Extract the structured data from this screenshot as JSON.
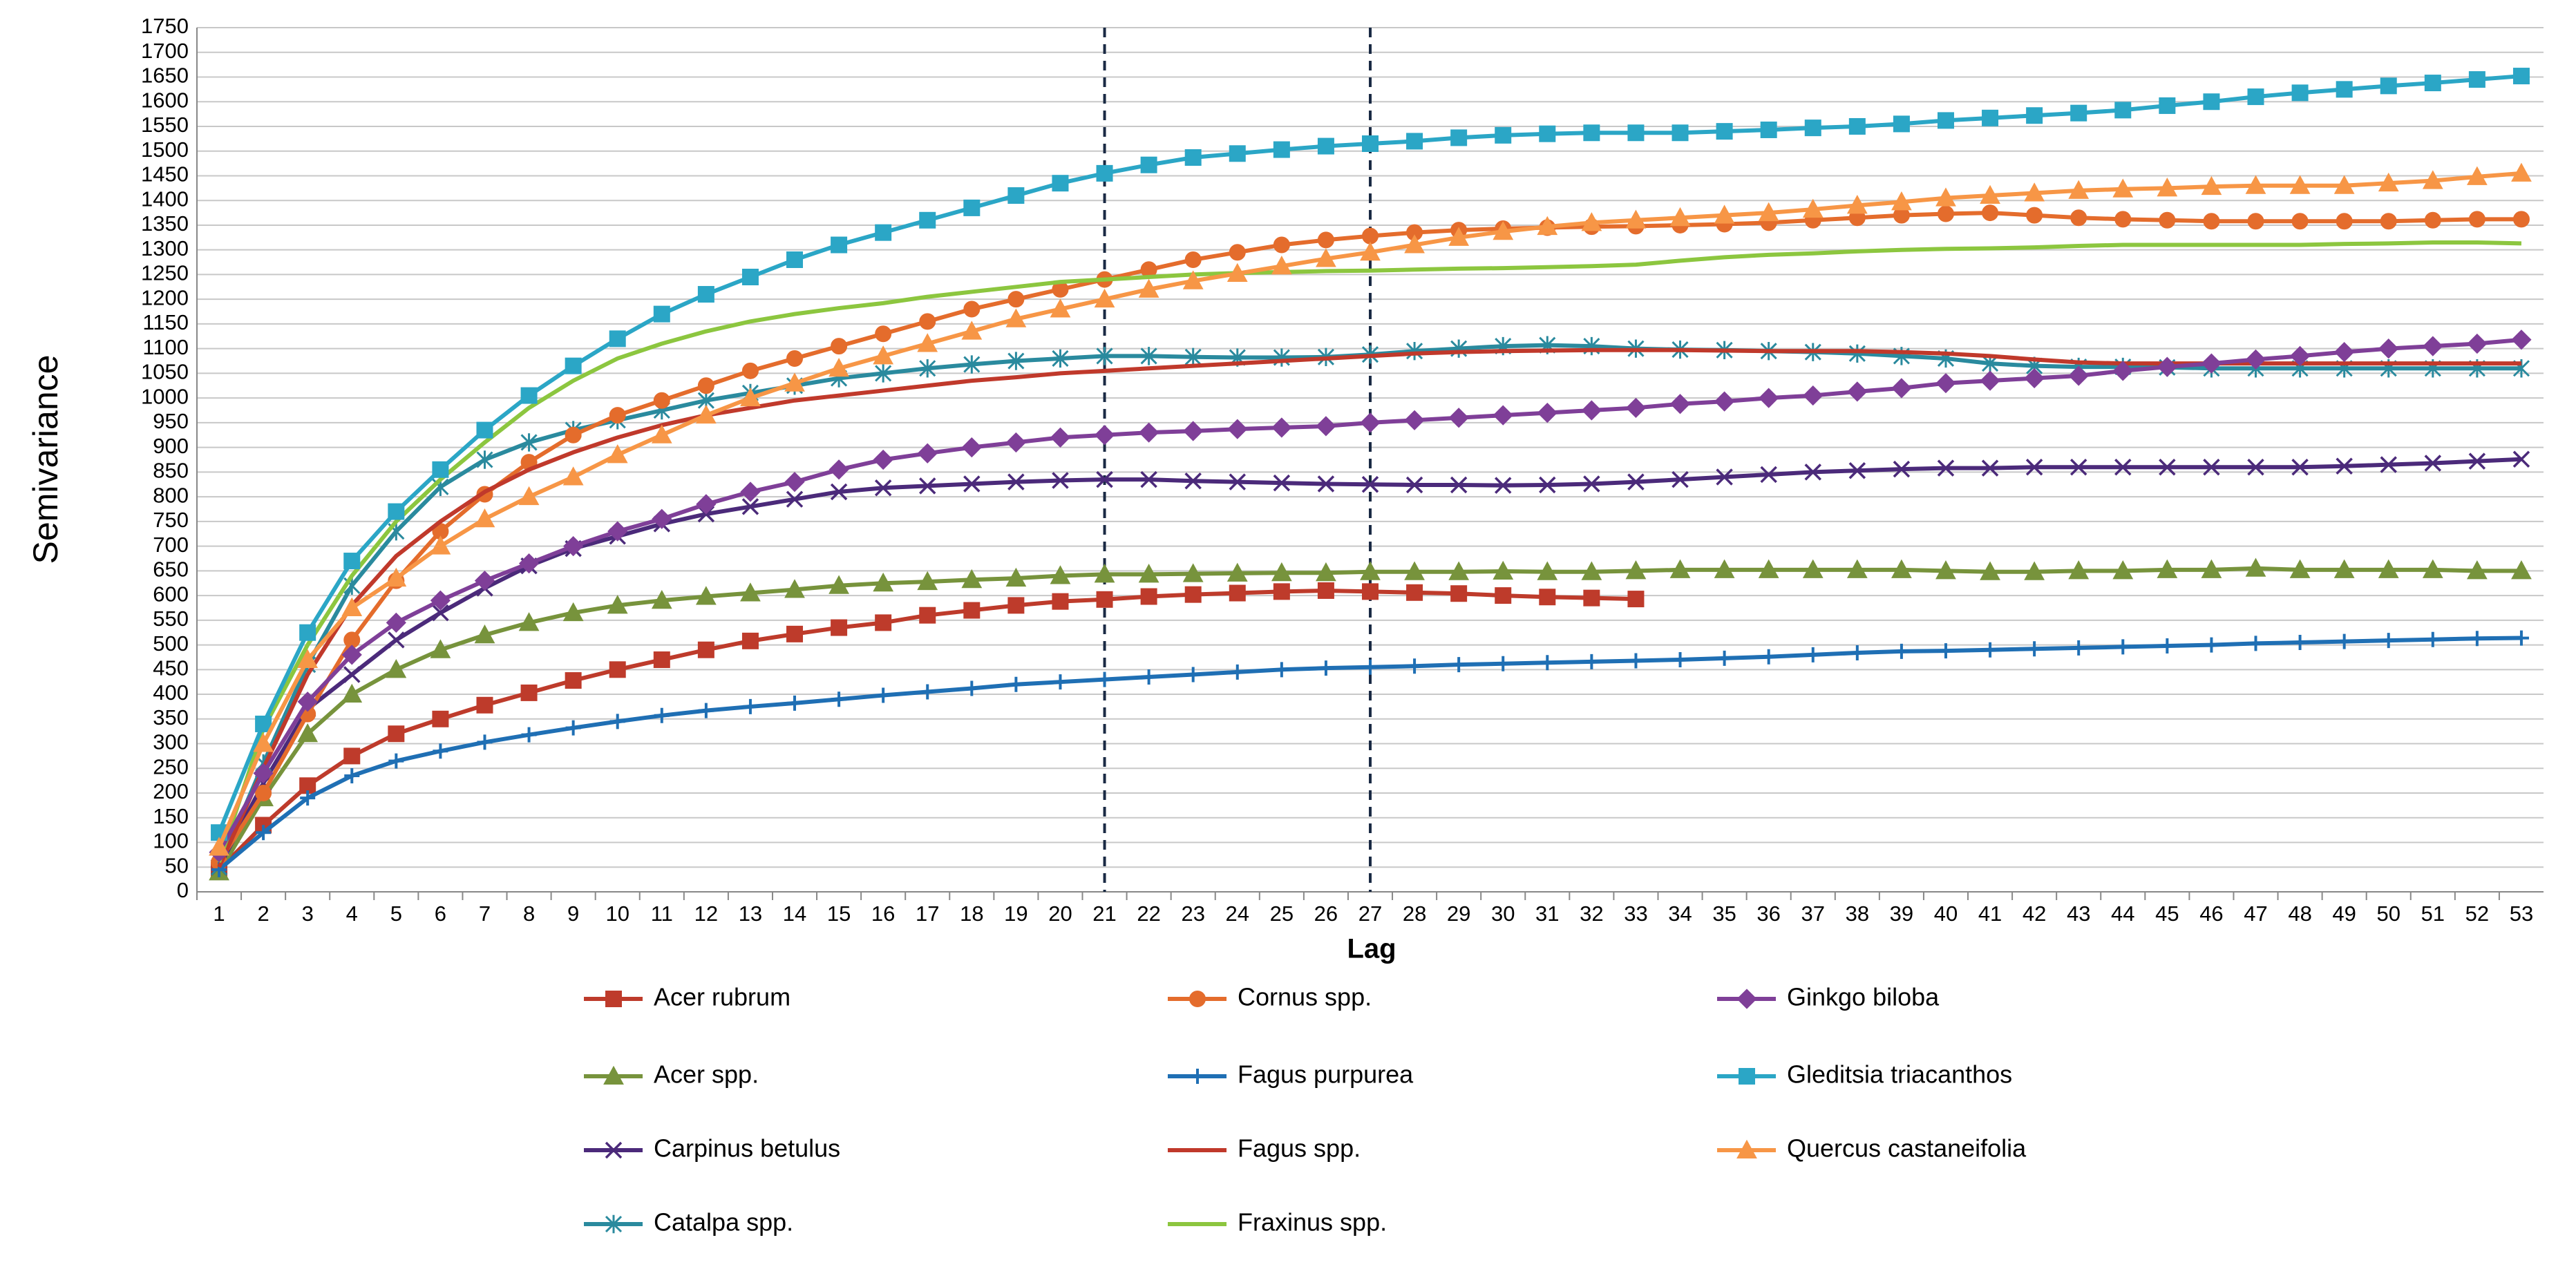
{
  "chart_data": {
    "type": "line",
    "xlabel": "Lag",
    "ylabel": "Semivariance",
    "categories": [
      1,
      2,
      3,
      4,
      5,
      6,
      7,
      8,
      9,
      10,
      11,
      12,
      13,
      14,
      15,
      16,
      17,
      18,
      19,
      20,
      21,
      22,
      23,
      24,
      25,
      26,
      27,
      28,
      29,
      30,
      31,
      32,
      33,
      34,
      35,
      36,
      37,
      38,
      39,
      40,
      41,
      42,
      43,
      44,
      45,
      46,
      47,
      48,
      49,
      50,
      51,
      52,
      53
    ],
    "ylim": [
      0,
      1750
    ],
    "yticks": [
      0,
      50,
      100,
      150,
      200,
      250,
      300,
      350,
      400,
      450,
      500,
      550,
      600,
      650,
      700,
      750,
      800,
      850,
      900,
      950,
      1000,
      1050,
      1100,
      1150,
      1200,
      1250,
      1300,
      1350,
      1400,
      1450,
      1500,
      1550,
      1600,
      1650,
      1700,
      1750
    ],
    "grid": true,
    "reference_lines": [
      21,
      27
    ],
    "series": [
      {
        "name": "Acer rubrum",
        "color": "#be3b2b",
        "marker": "square",
        "values": [
          45,
          135,
          215,
          275,
          320,
          350,
          378,
          403,
          428,
          450,
          470,
          490,
          508,
          522,
          535,
          545,
          560,
          570,
          580,
          588,
          592,
          598,
          602,
          605,
          608,
          610,
          608,
          606,
          604,
          600,
          597,
          595,
          593,
          null,
          null,
          null,
          null,
          null,
          null,
          null,
          null,
          null,
          null,
          null,
          null,
          null,
          null,
          null,
          null,
          null,
          null,
          null,
          null
        ]
      },
      {
        "name": "Acer spp.",
        "color": "#77933c",
        "marker": "triangle",
        "values": [
          40,
          190,
          320,
          400,
          450,
          490,
          520,
          545,
          565,
          580,
          590,
          598,
          605,
          612,
          620,
          625,
          628,
          632,
          635,
          640,
          643,
          643,
          644,
          645,
          646,
          646,
          648,
          648,
          648,
          649,
          648,
          648,
          650,
          652,
          652,
          652,
          652,
          652,
          652,
          650,
          648,
          648,
          650,
          650,
          652,
          652,
          655,
          652,
          652,
          652,
          652,
          650,
          650
        ]
      },
      {
        "name": "Carpinus betulus",
        "color": "#4b2a7a",
        "marker": "x",
        "values": [
          50,
          220,
          370,
          440,
          510,
          565,
          615,
          660,
          695,
          720,
          745,
          765,
          780,
          795,
          810,
          818,
          822,
          826,
          830,
          833,
          835,
          835,
          832,
          830,
          828,
          826,
          825,
          824,
          824,
          823,
          824,
          826,
          830,
          835,
          840,
          845,
          850,
          853,
          856,
          858,
          858,
          860,
          860,
          860,
          860,
          860,
          860,
          860,
          862,
          865,
          868,
          872,
          876
        ]
      },
      {
        "name": "Catalpa spp.",
        "color": "#2a8a9e",
        "marker": "asterisk",
        "values": [
          50,
          260,
          460,
          620,
          730,
          820,
          875,
          910,
          935,
          955,
          975,
          995,
          1010,
          1025,
          1040,
          1050,
          1060,
          1068,
          1075,
          1080,
          1085,
          1085,
          1083,
          1082,
          1082,
          1083,
          1088,
          1095,
          1100,
          1105,
          1107,
          1105,
          1100,
          1098,
          1097,
          1095,
          1093,
          1090,
          1085,
          1080,
          1070,
          1065,
          1063,
          1063,
          1062,
          1060,
          1060,
          1060,
          1060,
          1060,
          1060,
          1060,
          1060
        ]
      },
      {
        "name": "Cornus spp.",
        "color": "#e46c2c",
        "marker": "circle",
        "values": [
          60,
          200,
          360,
          510,
          630,
          730,
          805,
          870,
          925,
          965,
          995,
          1025,
          1055,
          1080,
          1105,
          1130,
          1155,
          1180,
          1200,
          1220,
          1240,
          1260,
          1280,
          1295,
          1310,
          1320,
          1328,
          1335,
          1340,
          1343,
          1345,
          1347,
          1348,
          1350,
          1352,
          1355,
          1360,
          1365,
          1370,
          1373,
          1375,
          1370,
          1365,
          1362,
          1360,
          1358,
          1358,
          1358,
          1358,
          1358,
          1360,
          1362,
          1362
        ]
      },
      {
        "name": "Fagus purpurea",
        "color": "#1f6fb4",
        "marker": "plus",
        "values": [
          45,
          120,
          190,
          235,
          265,
          285,
          303,
          318,
          332,
          345,
          357,
          367,
          375,
          382,
          390,
          398,
          405,
          412,
          420,
          425,
          430,
          435,
          440,
          445,
          450,
          453,
          455,
          457,
          460,
          462,
          464,
          466,
          468,
          470,
          473,
          476,
          480,
          484,
          487,
          488,
          490,
          492,
          494,
          496,
          498,
          500,
          503,
          505,
          507,
          509,
          511,
          513,
          514
        ]
      },
      {
        "name": "Fagus spp.",
        "color": "#c0392b",
        "marker": "none",
        "values": [
          50,
          250,
          440,
          580,
          680,
          750,
          810,
          855,
          890,
          920,
          945,
          965,
          980,
          995,
          1005,
          1015,
          1025,
          1035,
          1042,
          1050,
          1055,
          1060,
          1065,
          1070,
          1075,
          1080,
          1085,
          1090,
          1093,
          1095,
          1096,
          1097,
          1097,
          1097,
          1096,
          1095,
          1095,
          1095,
          1093,
          1090,
          1085,
          1078,
          1072,
          1070,
          1070,
          1070,
          1070,
          1070,
          1070,
          1070,
          1070,
          1070,
          1070
        ]
      },
      {
        "name": "Fraxinus spp.",
        "color": "#8cc63f",
        "marker": "none",
        "values": [
          60,
          330,
          500,
          640,
          750,
          835,
          910,
          980,
          1035,
          1080,
          1110,
          1135,
          1155,
          1170,
          1182,
          1192,
          1205,
          1215,
          1225,
          1235,
          1240,
          1245,
          1250,
          1253,
          1255,
          1257,
          1258,
          1260,
          1262,
          1263,
          1265,
          1267,
          1270,
          1278,
          1285,
          1290,
          1293,
          1297,
          1300,
          1302,
          1303,
          1305,
          1308,
          1310,
          1310,
          1310,
          1310,
          1310,
          1312,
          1313,
          1315,
          1315,
          1313
        ]
      },
      {
        "name": "Ginkgo biloba",
        "color": "#7f3f98",
        "marker": "diamond",
        "values": [
          80,
          240,
          385,
          480,
          545,
          590,
          630,
          665,
          700,
          730,
          755,
          785,
          810,
          830,
          855,
          875,
          888,
          900,
          910,
          920,
          925,
          930,
          933,
          937,
          940,
          943,
          950,
          955,
          960,
          965,
          970,
          975,
          980,
          988,
          993,
          1000,
          1005,
          1013,
          1020,
          1030,
          1035,
          1040,
          1045,
          1055,
          1063,
          1070,
          1078,
          1085,
          1093,
          1100,
          1105,
          1110,
          1118
        ]
      },
      {
        "name": "Gleditsia triacanthos",
        "color": "#2ba6c6",
        "marker": "square",
        "values": [
          120,
          340,
          525,
          670,
          770,
          855,
          935,
          1005,
          1065,
          1120,
          1170,
          1210,
          1245,
          1280,
          1310,
          1335,
          1360,
          1385,
          1410,
          1435,
          1455,
          1472,
          1487,
          1495,
          1503,
          1510,
          1515,
          1520,
          1527,
          1532,
          1535,
          1537,
          1537,
          1537,
          1540,
          1543,
          1547,
          1550,
          1555,
          1562,
          1567,
          1572,
          1577,
          1583,
          1592,
          1600,
          1610,
          1618,
          1625,
          1632,
          1638,
          1645,
          1652
        ]
      },
      {
        "name": "Quercus castaneifolia",
        "color": "#f79646",
        "marker": "triangle",
        "values": [
          90,
          300,
          470,
          575,
          635,
          700,
          755,
          800,
          840,
          885,
          925,
          965,
          1000,
          1030,
          1060,
          1085,
          1110,
          1135,
          1160,
          1180,
          1200,
          1220,
          1237,
          1252,
          1267,
          1282,
          1295,
          1310,
          1325,
          1337,
          1347,
          1355,
          1360,
          1365,
          1370,
          1375,
          1382,
          1390,
          1397,
          1405,
          1410,
          1415,
          1420,
          1423,
          1425,
          1428,
          1430,
          1430,
          1430,
          1435,
          1440,
          1448,
          1455
        ]
      }
    ]
  }
}
